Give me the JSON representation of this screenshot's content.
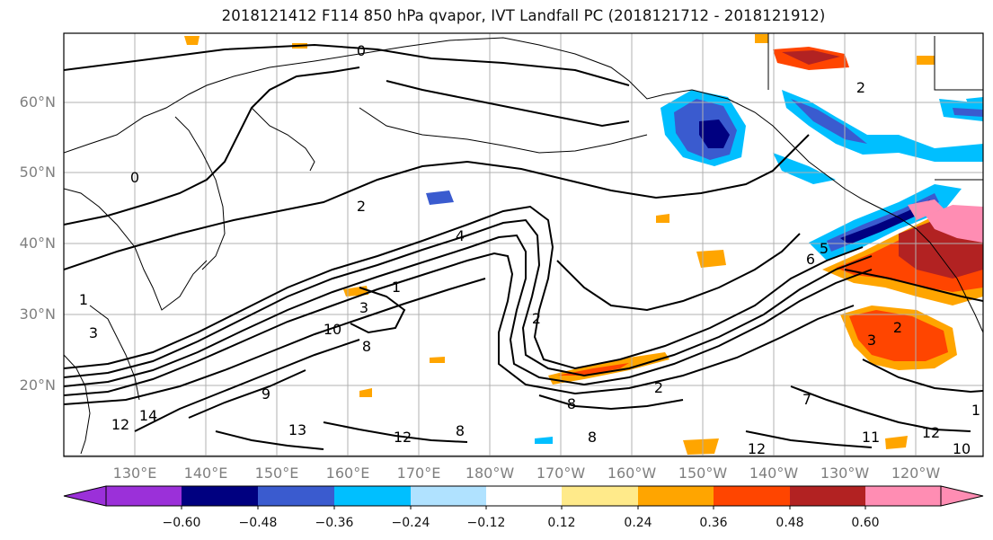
{
  "title": "2018121412 F114 850 hPa qvapor, IVT Landfall PC (2018121712 - 2018121912)",
  "lat_labels": [
    "60°N",
    "50°N",
    "40°N",
    "30°N",
    "20°N"
  ],
  "lon_labels": [
    "130°E",
    "140°E",
    "150°E",
    "160°E",
    "170°E",
    "180°W",
    "170°W",
    "160°W",
    "150°W",
    "140°W",
    "130°W",
    "120°W"
  ],
  "colorbar": {
    "ticks": [
      "−0.60",
      "−0.48",
      "−0.36",
      "−0.24",
      "−0.12",
      "0.12",
      "0.24",
      "0.36",
      "0.48",
      "0.60"
    ],
    "colors": [
      "#9b30d9",
      "#000080",
      "#3a5bcf",
      "#00bfff",
      "#b0e2ff",
      "#ffffff",
      "#ffea8a",
      "#ffa500",
      "#ff4500",
      "#b22222",
      "#ff8db3"
    ]
  },
  "contour_labels": [
    "0",
    "0",
    "2",
    "4",
    "1",
    "3",
    "10",
    "8",
    "2",
    "6",
    "5",
    "2",
    "3",
    "8",
    "9",
    "13",
    "14",
    "12",
    "12",
    "8",
    "8",
    "12",
    "11",
    "12",
    "10",
    "7",
    "1",
    "1",
    "3",
    "2",
    "2"
  ]
}
